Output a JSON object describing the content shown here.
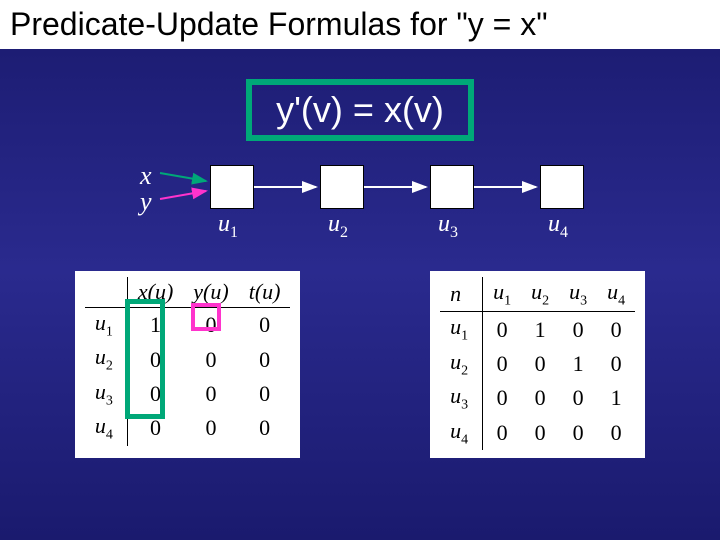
{
  "title": "Predicate-Update Formulas for \"y = x\"",
  "formula": "y'(v) = x(v)",
  "pointers": {
    "x": "x",
    "y": "y"
  },
  "nodes": [
    "u1",
    "u2",
    "u3",
    "u4"
  ],
  "leftTable": {
    "colHeaders": [
      "x(u)",
      "y(u)",
      "t(u)"
    ],
    "rowHeaders": [
      "u1",
      "u2",
      "u3",
      "u4"
    ],
    "rows": [
      [
        "1",
        "0",
        "0"
      ],
      [
        "0",
        "0",
        "0"
      ],
      [
        "0",
        "0",
        "0"
      ],
      [
        "0",
        "0",
        "0"
      ]
    ]
  },
  "rightTable": {
    "corner": "n",
    "colHeaders": [
      "u1",
      "u2",
      "u3",
      "u4"
    ],
    "rowHeaders": [
      "u1",
      "u2",
      "u3",
      "u4"
    ],
    "rows": [
      [
        "0",
        "1",
        "0",
        "0"
      ],
      [
        "0",
        "0",
        "1",
        "0"
      ],
      [
        "0",
        "0",
        "0",
        "1"
      ],
      [
        "0",
        "0",
        "0",
        "0"
      ]
    ]
  },
  "colors": {
    "teal": "#00a878",
    "pink": "#ff33cc",
    "xArrow": "#00a878",
    "yArrow": "#ff33cc",
    "edgeArrow": "#ffffff"
  }
}
